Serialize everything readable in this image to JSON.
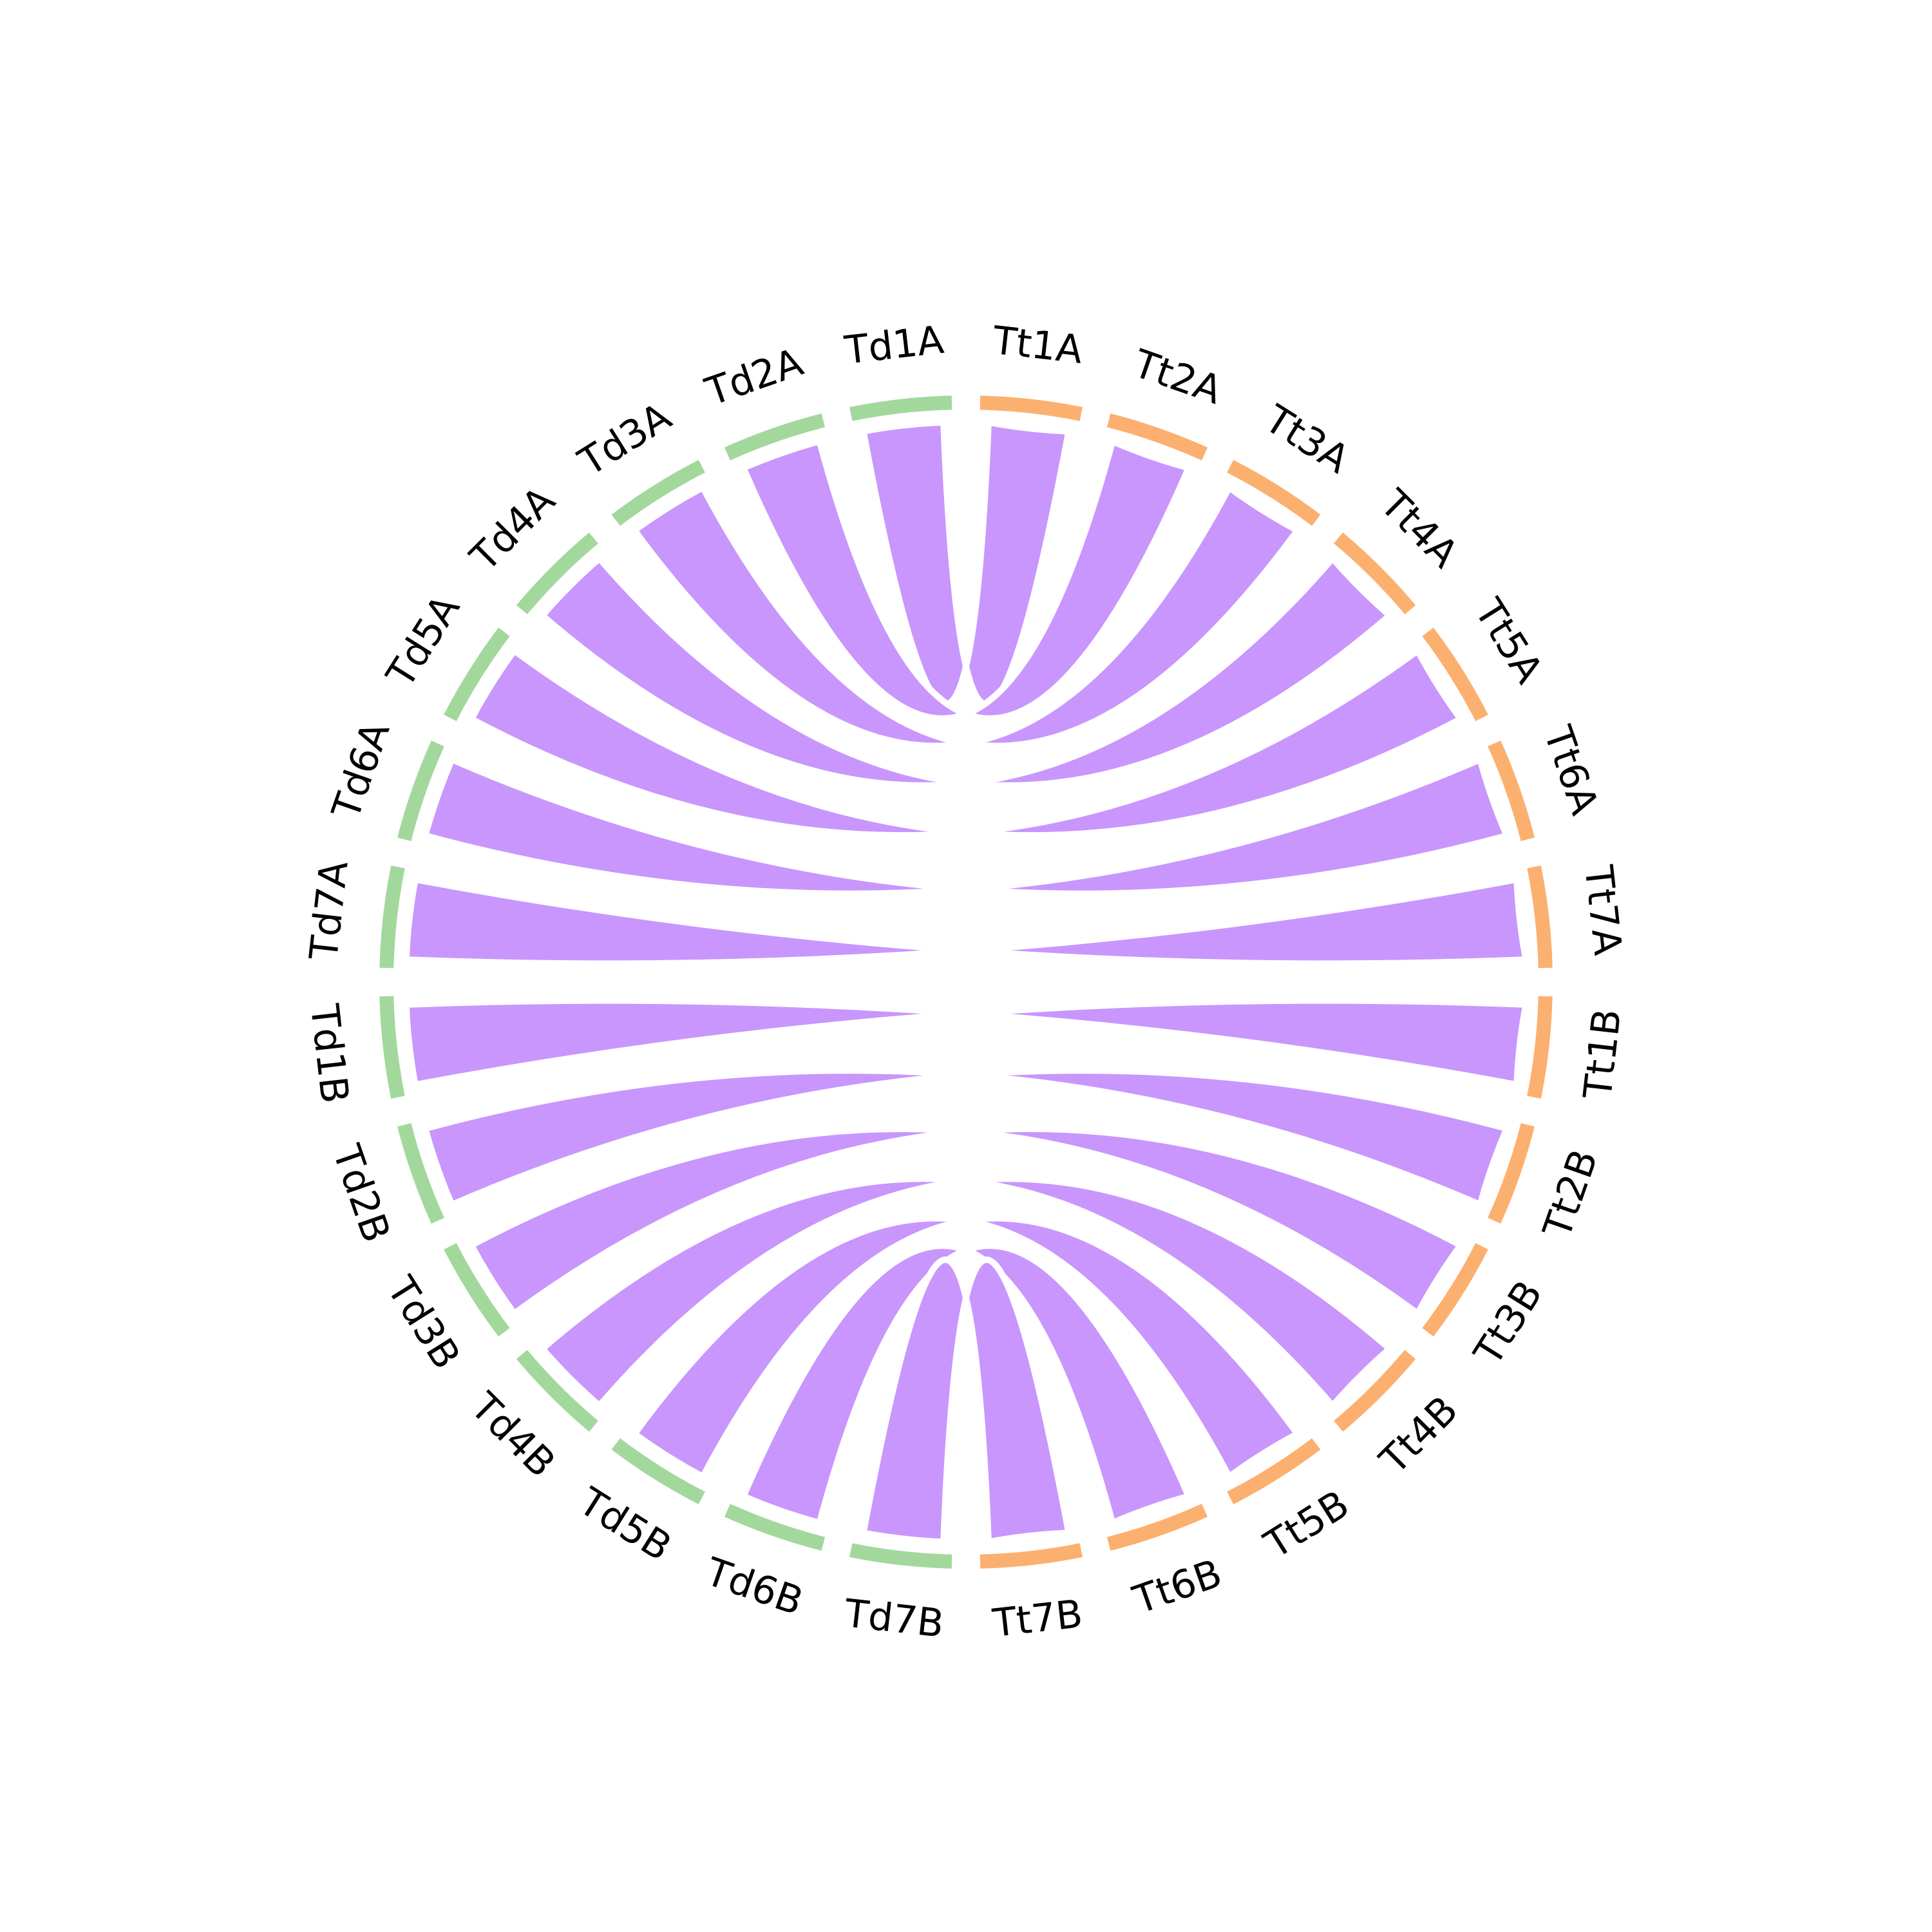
{
  "colors": {
    "background": "#ffffff",
    "genome_td": "#a3d89d",
    "genome_tt": "#fcb06f",
    "link": "#c896fc",
    "label": "#000000"
  },
  "chart_data": {
    "type": "chord",
    "chromosomes": [
      {
        "id": "Tt1A",
        "genome": "Tt"
      },
      {
        "id": "Tt2A",
        "genome": "Tt"
      },
      {
        "id": "Tt3A",
        "genome": "Tt"
      },
      {
        "id": "Tt4A",
        "genome": "Tt"
      },
      {
        "id": "Tt5A",
        "genome": "Tt"
      },
      {
        "id": "Tt6A",
        "genome": "Tt"
      },
      {
        "id": "Tt7A",
        "genome": "Tt"
      },
      {
        "id": "Tt1B",
        "genome": "Tt"
      },
      {
        "id": "Tt2B",
        "genome": "Tt"
      },
      {
        "id": "Tt3B",
        "genome": "Tt"
      },
      {
        "id": "Tt4B",
        "genome": "Tt"
      },
      {
        "id": "Tt5B",
        "genome": "Tt"
      },
      {
        "id": "Tt6B",
        "genome": "Tt"
      },
      {
        "id": "Tt7B",
        "genome": "Tt"
      },
      {
        "id": "Td7B",
        "genome": "Td"
      },
      {
        "id": "Td6B",
        "genome": "Td"
      },
      {
        "id": "Td5B",
        "genome": "Td"
      },
      {
        "id": "Td4B",
        "genome": "Td"
      },
      {
        "id": "Td3B",
        "genome": "Td"
      },
      {
        "id": "Td2B",
        "genome": "Td"
      },
      {
        "id": "Td1B",
        "genome": "Td"
      },
      {
        "id": "Td7A",
        "genome": "Td"
      },
      {
        "id": "Td6A",
        "genome": "Td"
      },
      {
        "id": "Td5A",
        "genome": "Td"
      },
      {
        "id": "Td4A",
        "genome": "Td"
      },
      {
        "id": "Td3A",
        "genome": "Td"
      },
      {
        "id": "Td2A",
        "genome": "Td"
      },
      {
        "id": "Td1A",
        "genome": "Td"
      }
    ],
    "links": [
      {
        "a": "Td1A",
        "b": "Tt1A"
      },
      {
        "a": "Td2A",
        "b": "Tt2A"
      },
      {
        "a": "Td3A",
        "b": "Tt3A"
      },
      {
        "a": "Td4A",
        "b": "Tt4A"
      },
      {
        "a": "Td5A",
        "b": "Tt5A"
      },
      {
        "a": "Td6A",
        "b": "Tt6A"
      },
      {
        "a": "Td7A",
        "b": "Tt7A"
      },
      {
        "a": "Td1B",
        "b": "Tt1B"
      },
      {
        "a": "Td2B",
        "b": "Tt2B"
      },
      {
        "a": "Td3B",
        "b": "Tt3B"
      },
      {
        "a": "Td4B",
        "b": "Tt4B"
      },
      {
        "a": "Td5B",
        "b": "Tt5B"
      },
      {
        "a": "Td6B",
        "b": "Tt6B"
      },
      {
        "a": "Td7B",
        "b": "Tt7B"
      }
    ]
  }
}
